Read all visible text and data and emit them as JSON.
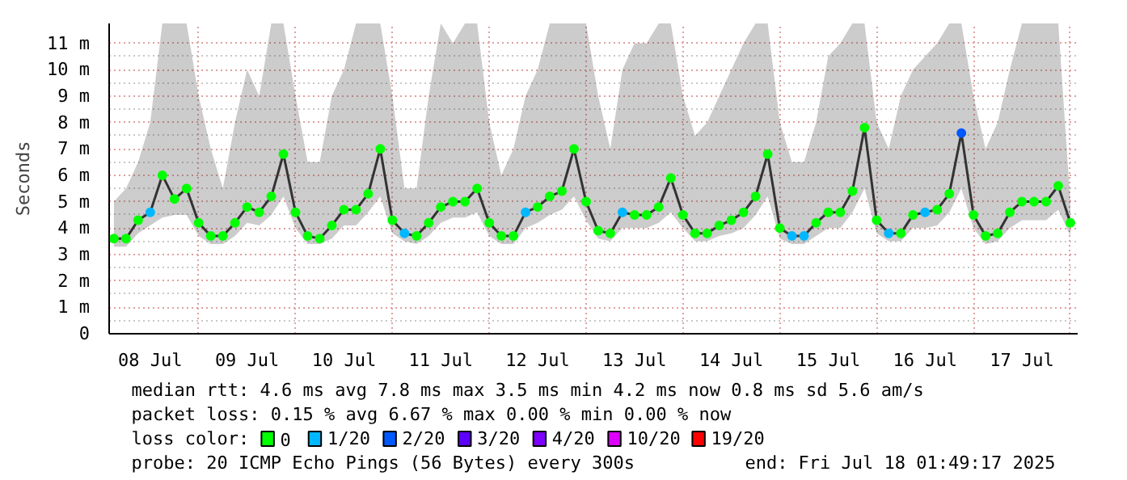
{
  "chart_data": {
    "type": "scatter",
    "ylabel": "Seconds",
    "xlim": [
      "2025-07-08T01:49",
      "2025-07-18T01:49"
    ],
    "xticks": [
      {
        "value": "2025-07-08T12:00",
        "label": "08 Jul"
      },
      {
        "value": "2025-07-09T12:00",
        "label": "09 Jul"
      },
      {
        "value": "2025-07-10T12:00",
        "label": "10 Jul"
      },
      {
        "value": "2025-07-11T12:00",
        "label": "11 Jul"
      },
      {
        "value": "2025-07-12T12:00",
        "label": "12 Jul"
      },
      {
        "value": "2025-07-13T12:00",
        "label": "13 Jul"
      },
      {
        "value": "2025-07-14T12:00",
        "label": "14 Jul"
      },
      {
        "value": "2025-07-15T12:00",
        "label": "15 Jul"
      },
      {
        "value": "2025-07-16T12:00",
        "label": "16 Jul"
      },
      {
        "value": "2025-07-17T12:00",
        "label": "17 Jul"
      }
    ],
    "ylim": [
      0,
      11.75
    ],
    "yticks": [
      0,
      {
        "value": 1,
        "label": "1 m"
      },
      {
        "value": 2,
        "label": "2 m"
      },
      {
        "value": 3,
        "label": "3 m"
      },
      {
        "value": 4,
        "label": "4 m"
      },
      {
        "value": 5,
        "label": "5 m"
      },
      {
        "value": 6,
        "label": "6 m"
      },
      {
        "value": 7,
        "label": "7 m"
      },
      {
        "value": 8,
        "label": "8 m"
      },
      {
        "value": 9,
        "label": "9 m"
      },
      {
        "value": 10,
        "label": "10 m"
      },
      {
        "value": 11,
        "label": "11 m"
      }
    ],
    "grid": true,
    "legend": "bottom",
    "legend_title": "loss color:",
    "x": [
      "2025-07-08T03:00",
      "2025-07-08T06:00",
      "2025-07-08T09:00",
      "2025-07-08T12:00",
      "2025-07-08T15:00",
      "2025-07-08T18:00",
      "2025-07-08T21:00",
      "2025-07-09T00:00",
      "2025-07-09T03:00",
      "2025-07-09T06:00",
      "2025-07-09T09:00",
      "2025-07-09T12:00",
      "2025-07-09T15:00",
      "2025-07-09T18:00",
      "2025-07-09T21:00",
      "2025-07-10T00:00",
      "2025-07-10T03:00",
      "2025-07-10T06:00",
      "2025-07-10T09:00",
      "2025-07-10T12:00",
      "2025-07-10T15:00",
      "2025-07-10T18:00",
      "2025-07-10T21:00",
      "2025-07-11T00:00",
      "2025-07-11T03:00",
      "2025-07-11T06:00",
      "2025-07-11T09:00",
      "2025-07-11T12:00",
      "2025-07-11T15:00",
      "2025-07-11T18:00",
      "2025-07-11T21:00",
      "2025-07-12T00:00",
      "2025-07-12T03:00",
      "2025-07-12T06:00",
      "2025-07-12T09:00",
      "2025-07-12T12:00",
      "2025-07-12T15:00",
      "2025-07-12T18:00",
      "2025-07-12T21:00",
      "2025-07-13T00:00",
      "2025-07-13T03:00",
      "2025-07-13T06:00",
      "2025-07-13T09:00",
      "2025-07-13T12:00",
      "2025-07-13T15:00",
      "2025-07-13T18:00",
      "2025-07-13T21:00",
      "2025-07-14T00:00",
      "2025-07-14T03:00",
      "2025-07-14T06:00",
      "2025-07-14T09:00",
      "2025-07-14T12:00",
      "2025-07-14T15:00",
      "2025-07-14T18:00",
      "2025-07-14T21:00",
      "2025-07-15T00:00",
      "2025-07-15T03:00",
      "2025-07-15T06:00",
      "2025-07-15T09:00",
      "2025-07-15T12:00",
      "2025-07-15T15:00",
      "2025-07-15T18:00",
      "2025-07-15T21:00",
      "2025-07-16T00:00",
      "2025-07-16T03:00",
      "2025-07-16T06:00",
      "2025-07-16T09:00",
      "2025-07-16T12:00",
      "2025-07-16T15:00",
      "2025-07-16T18:00",
      "2025-07-16T21:00",
      "2025-07-17T00:00",
      "2025-07-17T03:00",
      "2025-07-17T06:00",
      "2025-07-17T09:00",
      "2025-07-17T12:00",
      "2025-07-17T15:00",
      "2025-07-17T18:00",
      "2025-07-17T21:00",
      "2025-07-18T00:00"
    ],
    "series": [
      {
        "type": "line",
        "color": "#333333",
        "values": [
          3.6,
          3.6,
          4.3,
          4.6,
          6.0,
          5.1,
          5.5,
          4.2,
          3.7,
          3.7,
          4.2,
          4.8,
          4.6,
          5.2,
          6.8,
          4.6,
          3.7,
          3.6,
          4.1,
          4.7,
          4.7,
          5.3,
          7.0,
          4.3,
          3.8,
          3.7,
          4.2,
          4.8,
          5.0,
          5.0,
          5.5,
          4.2,
          3.7,
          3.7,
          4.6,
          4.8,
          5.2,
          5.4,
          7.0,
          5.0,
          3.9,
          3.8,
          4.6,
          4.5,
          4.5,
          4.8,
          5.9,
          4.5,
          3.8,
          3.8,
          4.1,
          4.3,
          4.6,
          5.2,
          6.8,
          4.0,
          3.7,
          3.7,
          4.2,
          4.6,
          4.6,
          5.4,
          7.8,
          4.3,
          3.8,
          3.8,
          4.5,
          4.6,
          4.7,
          5.3,
          7.6,
          4.5,
          3.7,
          3.8,
          4.6,
          5.0,
          5.0,
          5.0,
          5.6,
          4.2
        ],
        "lower": [
          3.3,
          3.3,
          3.8,
          4.1,
          4.4,
          4.5,
          4.5,
          3.7,
          3.4,
          3.4,
          3.7,
          4.2,
          4.1,
          4.5,
          5.2,
          4.0,
          3.4,
          3.4,
          3.6,
          4.1,
          4.1,
          4.6,
          5.2,
          3.8,
          3.5,
          3.4,
          3.7,
          4.2,
          4.4,
          4.4,
          4.6,
          3.7,
          3.4,
          3.4,
          4.0,
          4.2,
          4.5,
          4.7,
          5.2,
          4.3,
          3.6,
          3.5,
          4.0,
          4.0,
          4.0,
          4.2,
          4.6,
          4.0,
          3.5,
          3.5,
          3.7,
          3.8,
          4.0,
          4.5,
          5.2,
          3.6,
          3.4,
          3.4,
          3.7,
          4.0,
          4.0,
          4.6,
          5.5,
          3.8,
          3.5,
          3.5,
          4.0,
          4.0,
          4.1,
          4.6,
          5.5,
          4.0,
          3.4,
          3.5,
          4.0,
          4.3,
          4.3,
          4.3,
          4.7,
          3.7
        ],
        "upper": [
          5.0,
          5.5,
          6.5,
          8.0,
          11.75,
          11.75,
          11.75,
          9.0,
          7.0,
          5.5,
          8.0,
          10.0,
          9.0,
          11.75,
          11.75,
          9.0,
          6.5,
          6.5,
          9.0,
          10.0,
          11.75,
          11.75,
          11.75,
          9.0,
          5.5,
          5.5,
          9.0,
          11.75,
          11.0,
          11.75,
          11.75,
          8.0,
          6.0,
          7.0,
          9.0,
          10.0,
          11.75,
          11.75,
          11.75,
          11.75,
          9.0,
          7.0,
          10.0,
          11.0,
          11.0,
          11.75,
          11.75,
          9.0,
          7.5,
          8.0,
          9.0,
          10.0,
          11.0,
          11.75,
          11.75,
          8.0,
          6.5,
          6.5,
          8.0,
          10.5,
          11.0,
          11.75,
          11.75,
          8.0,
          7.0,
          9.0,
          10.0,
          10.5,
          11.0,
          11.75,
          11.75,
          9.0,
          7.0,
          8.0,
          10.0,
          11.75,
          11.75,
          11.75,
          11.75,
          5.0
        ]
      },
      {
        "name": "0",
        "color": "#00ff00",
        "values": [
          3.6,
          3.6,
          4.3,
          null,
          6.0,
          5.1,
          5.5,
          4.2,
          3.7,
          3.7,
          4.2,
          4.8,
          4.6,
          5.2,
          6.8,
          4.6,
          3.7,
          3.6,
          4.1,
          4.7,
          4.7,
          5.3,
          7.0,
          4.3,
          null,
          3.7,
          4.2,
          4.8,
          5.0,
          5.0,
          5.5,
          4.2,
          3.7,
          3.7,
          null,
          4.8,
          5.2,
          5.4,
          7.0,
          5.0,
          3.9,
          3.8,
          null,
          4.5,
          4.5,
          4.8,
          5.9,
          4.5,
          3.8,
          3.8,
          4.1,
          4.3,
          4.6,
          5.2,
          6.8,
          4.0,
          null,
          null,
          4.2,
          4.6,
          4.6,
          5.4,
          7.8,
          4.3,
          null,
          3.8,
          4.5,
          null,
          4.7,
          5.3,
          null,
          4.5,
          3.7,
          3.8,
          4.6,
          5.0,
          5.0,
          5.0,
          5.6,
          4.2
        ]
      },
      {
        "name": "1/20",
        "color": "#00b8ff",
        "values": [
          null,
          null,
          null,
          4.6,
          null,
          null,
          null,
          null,
          null,
          null,
          null,
          null,
          null,
          null,
          null,
          null,
          null,
          null,
          null,
          null,
          null,
          null,
          null,
          null,
          3.8,
          null,
          null,
          null,
          null,
          null,
          null,
          null,
          null,
          null,
          4.6,
          null,
          null,
          null,
          null,
          null,
          null,
          null,
          4.6,
          null,
          null,
          null,
          null,
          null,
          null,
          null,
          null,
          null,
          null,
          null,
          null,
          null,
          3.7,
          3.7,
          null,
          null,
          null,
          null,
          null,
          null,
          3.8,
          null,
          null,
          4.6,
          null,
          null,
          null,
          null,
          null,
          null,
          null,
          null,
          null,
          null,
          null,
          null
        ]
      },
      {
        "name": "2/20",
        "color": "#0059ff",
        "values": [
          null,
          null,
          null,
          null,
          null,
          null,
          null,
          null,
          null,
          null,
          null,
          null,
          null,
          null,
          null,
          null,
          null,
          null,
          null,
          null,
          null,
          null,
          null,
          null,
          null,
          null,
          null,
          null,
          null,
          null,
          null,
          null,
          null,
          null,
          null,
          null,
          null,
          null,
          null,
          null,
          null,
          null,
          null,
          null,
          null,
          null,
          null,
          null,
          null,
          null,
          null,
          null,
          null,
          null,
          null,
          null,
          null,
          null,
          null,
          null,
          null,
          null,
          null,
          null,
          null,
          null,
          null,
          null,
          null,
          null,
          7.6,
          null,
          null,
          null,
          null,
          null,
          null,
          null,
          null,
          null
        ]
      },
      {
        "name": "3/20",
        "color": "#5e00ff",
        "values": [
          null,
          null,
          null,
          null,
          null,
          null,
          null,
          null,
          null,
          null,
          null,
          null,
          null,
          null,
          null,
          null,
          null,
          null,
          null,
          null,
          null,
          null,
          null,
          null,
          null,
          null,
          null,
          null,
          null,
          null,
          null,
          null,
          null,
          null,
          null,
          null,
          null,
          null,
          null,
          null,
          null,
          null,
          null,
          null,
          null,
          null,
          null,
          null,
          null,
          null,
          null,
          null,
          null,
          null,
          null,
          null,
          null,
          null,
          null,
          null,
          null,
          null,
          null,
          null,
          null,
          null,
          null,
          null,
          null,
          null,
          null,
          null,
          null,
          null,
          null,
          null,
          null,
          null,
          null,
          null
        ]
      },
      {
        "name": "4/20",
        "color": "#7e00ff",
        "values": [
          null,
          null,
          null,
          null,
          null,
          null,
          null,
          null,
          null,
          null,
          null,
          null,
          null,
          null,
          null,
          null,
          null,
          null,
          null,
          null,
          null,
          null,
          null,
          null,
          null,
          null,
          null,
          null,
          null,
          null,
          null,
          null,
          null,
          null,
          null,
          null,
          null,
          null,
          null,
          null,
          null,
          null,
          null,
          null,
          null,
          null,
          null,
          null,
          null,
          null,
          null,
          null,
          null,
          null,
          null,
          null,
          null,
          null,
          null,
          null,
          null,
          null,
          null,
          null,
          null,
          null,
          null,
          null,
          null,
          null,
          null,
          null,
          null,
          null,
          null,
          null,
          null,
          null,
          null,
          null
        ]
      },
      {
        "name": "10/20",
        "color": "#dd00ff",
        "values": [
          null,
          null,
          null,
          null,
          null,
          null,
          null,
          null,
          null,
          null,
          null,
          null,
          null,
          null,
          null,
          null,
          null,
          null,
          null,
          null,
          null,
          null,
          null,
          null,
          null,
          null,
          null,
          null,
          null,
          null,
          null,
          null,
          null,
          null,
          null,
          null,
          null,
          null,
          null,
          null,
          null,
          null,
          null,
          null,
          null,
          null,
          null,
          null,
          null,
          null,
          null,
          null,
          null,
          null,
          null,
          null,
          null,
          null,
          null,
          null,
          null,
          null,
          null,
          null,
          null,
          null,
          null,
          null,
          null,
          null,
          null,
          null,
          null,
          null,
          null,
          null,
          null,
          null,
          null,
          null
        ]
      },
      {
        "name": "19/20",
        "color": "#ff0000",
        "values": [
          null,
          null,
          null,
          null,
          null,
          null,
          null,
          null,
          null,
          null,
          null,
          null,
          null,
          null,
          null,
          null,
          null,
          null,
          null,
          null,
          null,
          null,
          null,
          null,
          null,
          null,
          null,
          null,
          null,
          null,
          null,
          null,
          null,
          null,
          null,
          null,
          null,
          null,
          null,
          null,
          null,
          null,
          null,
          null,
          null,
          null,
          null,
          null,
          null,
          null,
          null,
          null,
          null,
          null,
          null,
          null,
          null,
          null,
          null,
          null,
          null,
          null,
          null,
          null,
          null,
          null,
          null,
          null,
          null,
          null,
          null,
          null,
          null,
          null,
          null,
          null,
          null,
          null,
          null,
          null
        ]
      }
    ],
    "annotations": [
      "median rtt:  4.6 ms avg  7.8 ms max  3.5 ms min  4.2 ms now  0.8 ms sd  5.6   am/s",
      "packet loss: 0.15 % avg  6.67 % max  0.00 % min  0.00 % now",
      "probe:       20 ICMP Echo Pings (56 Bytes) every 300s",
      "end: Fri Jul 18 01:49:17 2025"
    ]
  }
}
